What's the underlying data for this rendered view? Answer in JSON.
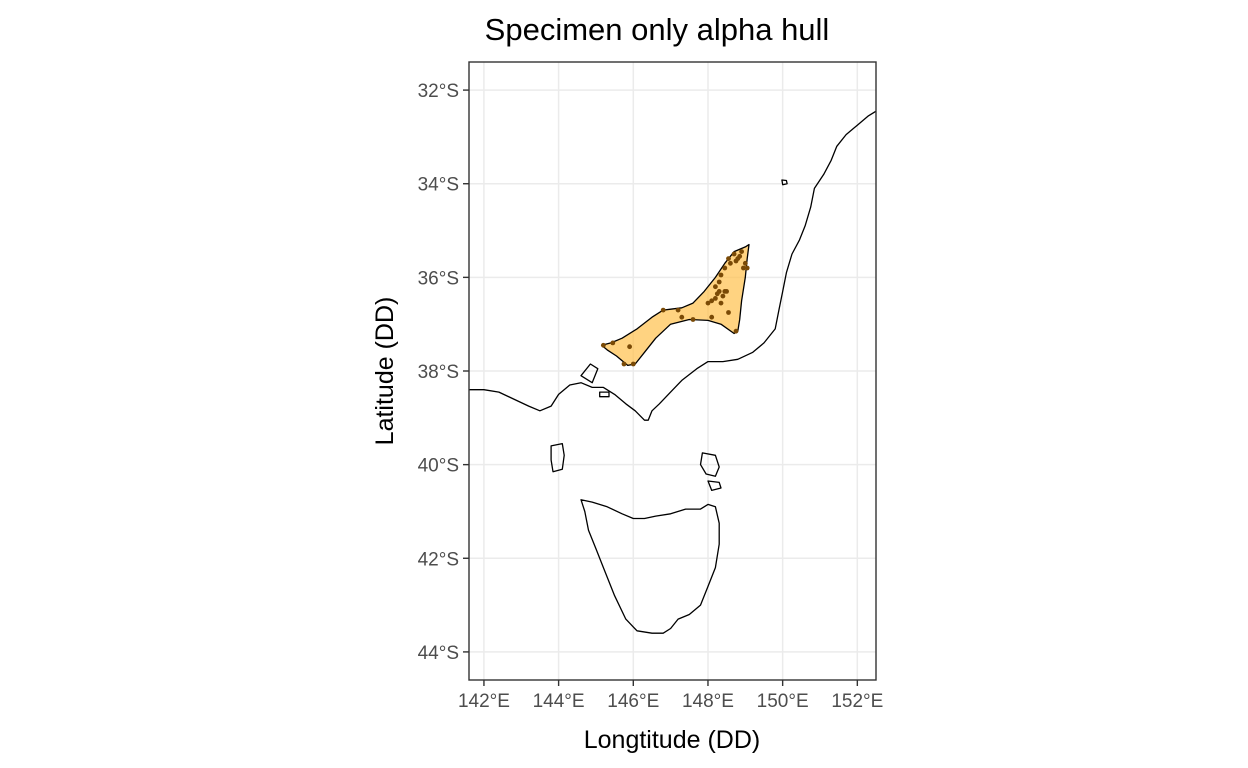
{
  "title": "Specimen only alpha hull",
  "x_axis": {
    "label": "Longtitude (DD)",
    "ticks": [
      142,
      144,
      146,
      148,
      150,
      152
    ],
    "tick_labels": [
      "142°E",
      "144°E",
      "146°E",
      "148°E",
      "150°E",
      "152°E"
    ],
    "range": [
      141.6,
      152.5
    ]
  },
  "y_axis": {
    "label": "Latitude (DD)",
    "ticks": [
      -32,
      -34,
      -36,
      -38,
      -40,
      -42,
      -44
    ],
    "tick_labels": [
      "32°S",
      "34°S",
      "36°S",
      "38°S",
      "40°S",
      "42°S",
      "44°S"
    ],
    "range": [
      -44.6,
      -31.4
    ]
  },
  "grid": true,
  "colors": {
    "hull_fill": "#ffc04c",
    "hull_opacity": 0.7,
    "point": "#7a4a06",
    "coastline": "#000000",
    "grid": "#ebebeb"
  },
  "map_layers": {
    "coastline_mainland": [
      [
        141.6,
        -38.4
      ],
      [
        142.0,
        -38.4
      ],
      [
        142.4,
        -38.45
      ],
      [
        142.8,
        -38.6
      ],
      [
        143.2,
        -38.75
      ],
      [
        143.5,
        -38.85
      ],
      [
        143.8,
        -38.75
      ],
      [
        144.0,
        -38.5
      ],
      [
        144.3,
        -38.3
      ],
      [
        144.6,
        -38.25
      ],
      [
        144.9,
        -38.35
      ],
      [
        145.2,
        -38.35
      ],
      [
        145.5,
        -38.5
      ],
      [
        145.8,
        -38.7
      ],
      [
        146.05,
        -38.85
      ],
      [
        146.3,
        -39.05
      ],
      [
        146.4,
        -39.05
      ],
      [
        146.5,
        -38.85
      ],
      [
        146.7,
        -38.7
      ],
      [
        147.0,
        -38.45
      ],
      [
        147.3,
        -38.2
      ],
      [
        147.7,
        -37.95
      ],
      [
        148.0,
        -37.8
      ],
      [
        148.4,
        -37.8
      ],
      [
        148.8,
        -37.75
      ],
      [
        149.2,
        -37.6
      ],
      [
        149.5,
        -37.4
      ],
      [
        149.8,
        -37.1
      ],
      [
        149.9,
        -36.7
      ],
      [
        150.0,
        -36.3
      ],
      [
        150.1,
        -35.9
      ],
      [
        150.25,
        -35.5
      ],
      [
        150.45,
        -35.2
      ],
      [
        150.6,
        -34.9
      ],
      [
        150.75,
        -34.5
      ],
      [
        150.85,
        -34.1
      ],
      [
        151.1,
        -33.8
      ],
      [
        151.3,
        -33.5
      ],
      [
        151.45,
        -33.2
      ],
      [
        151.7,
        -32.95
      ],
      [
        152.0,
        -32.75
      ],
      [
        152.3,
        -32.55
      ],
      [
        152.5,
        -32.45
      ]
    ],
    "coastline_tasmania": [
      [
        144.6,
        -40.75
      ],
      [
        144.9,
        -40.8
      ],
      [
        145.3,
        -40.9
      ],
      [
        145.7,
        -41.05
      ],
      [
        146.0,
        -41.15
      ],
      [
        146.3,
        -41.15
      ],
      [
        146.6,
        -41.1
      ],
      [
        147.0,
        -41.05
      ],
      [
        147.4,
        -40.95
      ],
      [
        147.8,
        -40.95
      ],
      [
        148.0,
        -40.85
      ],
      [
        148.2,
        -40.9
      ],
      [
        148.3,
        -41.25
      ],
      [
        148.3,
        -41.7
      ],
      [
        148.2,
        -42.2
      ],
      [
        148.0,
        -42.6
      ],
      [
        147.8,
        -43.0
      ],
      [
        147.5,
        -43.2
      ],
      [
        147.2,
        -43.3
      ],
      [
        147.0,
        -43.5
      ],
      [
        146.8,
        -43.6
      ],
      [
        146.5,
        -43.6
      ],
      [
        146.1,
        -43.55
      ],
      [
        145.8,
        -43.3
      ],
      [
        145.5,
        -42.8
      ],
      [
        145.2,
        -42.2
      ],
      [
        145.0,
        -41.8
      ],
      [
        144.8,
        -41.4
      ],
      [
        144.7,
        -41.0
      ],
      [
        144.6,
        -40.75
      ]
    ],
    "king_island": [
      [
        143.8,
        -39.6
      ],
      [
        144.1,
        -39.55
      ],
      [
        144.15,
        -39.8
      ],
      [
        144.1,
        -40.1
      ],
      [
        143.85,
        -40.15
      ],
      [
        143.8,
        -39.9
      ],
      [
        143.8,
        -39.6
      ]
    ],
    "flinders_island": [
      [
        147.85,
        -39.75
      ],
      [
        148.2,
        -39.8
      ],
      [
        148.3,
        -40.05
      ],
      [
        148.2,
        -40.25
      ],
      [
        147.95,
        -40.2
      ],
      [
        147.8,
        -40.0
      ],
      [
        147.85,
        -39.75
      ]
    ],
    "cape_barren_island": [
      [
        148.0,
        -40.35
      ],
      [
        148.3,
        -40.38
      ],
      [
        148.35,
        -40.5
      ],
      [
        148.1,
        -40.55
      ],
      [
        148.0,
        -40.35
      ]
    ],
    "montague_island": [
      [
        149.98,
        -33.92
      ],
      [
        150.1,
        -33.93
      ],
      [
        150.12,
        -34.0
      ],
      [
        150.0,
        -34.02
      ],
      [
        149.98,
        -33.92
      ]
    ],
    "phillip_island": [
      [
        145.1,
        -38.45
      ],
      [
        145.35,
        -38.45
      ],
      [
        145.35,
        -38.55
      ],
      [
        145.1,
        -38.55
      ],
      [
        145.1,
        -38.45
      ]
    ],
    "port_phillip_bay": [
      [
        144.6,
        -38.1
      ],
      [
        144.85,
        -37.85
      ],
      [
        145.05,
        -37.95
      ],
      [
        144.9,
        -38.25
      ],
      [
        144.6,
        -38.1
      ]
    ]
  },
  "chart_data": {
    "type": "scatter",
    "title": "Specimen only alpha hull",
    "xlabel": "Longtitude (DD)",
    "ylabel": "Latitude (DD)",
    "xlim": [
      141.6,
      152.5
    ],
    "ylim": [
      -44.6,
      -31.4
    ],
    "grid": true,
    "hull": [
      [
        145.15,
        -37.45
      ],
      [
        145.4,
        -37.4
      ],
      [
        145.7,
        -37.3
      ],
      [
        146.1,
        -37.1
      ],
      [
        146.5,
        -36.85
      ],
      [
        146.8,
        -36.7
      ],
      [
        147.0,
        -36.68
      ],
      [
        147.3,
        -36.65
      ],
      [
        147.6,
        -36.55
      ],
      [
        147.9,
        -36.3
      ],
      [
        148.2,
        -36.0
      ],
      [
        148.45,
        -35.7
      ],
      [
        148.7,
        -35.45
      ],
      [
        149.0,
        -35.35
      ],
      [
        149.1,
        -35.3
      ],
      [
        149.05,
        -35.6
      ],
      [
        149.0,
        -36.0
      ],
      [
        148.9,
        -36.5
      ],
      [
        148.85,
        -36.9
      ],
      [
        148.8,
        -37.15
      ],
      [
        148.7,
        -37.2
      ],
      [
        148.35,
        -37.0
      ],
      [
        148.0,
        -36.92
      ],
      [
        147.5,
        -36.9
      ],
      [
        147.0,
        -37.0
      ],
      [
        146.6,
        -37.3
      ],
      [
        146.3,
        -37.6
      ],
      [
        146.05,
        -37.85
      ],
      [
        145.85,
        -37.88
      ],
      [
        145.55,
        -37.68
      ],
      [
        145.3,
        -37.55
      ],
      [
        145.15,
        -37.45
      ]
    ],
    "points": [
      [
        145.2,
        -37.45
      ],
      [
        145.45,
        -37.4
      ],
      [
        145.9,
        -37.48
      ],
      [
        145.75,
        -37.85
      ],
      [
        146.0,
        -37.85
      ],
      [
        146.8,
        -36.7
      ],
      [
        147.2,
        -36.7
      ],
      [
        147.3,
        -36.85
      ],
      [
        147.6,
        -36.9
      ],
      [
        148.0,
        -36.55
      ],
      [
        148.1,
        -36.5
      ],
      [
        148.2,
        -36.45
      ],
      [
        148.25,
        -36.35
      ],
      [
        148.3,
        -36.3
      ],
      [
        148.35,
        -36.55
      ],
      [
        148.4,
        -36.4
      ],
      [
        148.45,
        -36.3
      ],
      [
        148.5,
        -36.3
      ],
      [
        148.55,
        -36.75
      ],
      [
        148.3,
        -36.1
      ],
      [
        148.35,
        -35.95
      ],
      [
        148.45,
        -35.8
      ],
      [
        148.55,
        -35.6
      ],
      [
        148.6,
        -35.7
      ],
      [
        148.7,
        -35.5
      ],
      [
        148.75,
        -35.65
      ],
      [
        148.8,
        -35.6
      ],
      [
        148.85,
        -35.55
      ],
      [
        148.9,
        -35.45
      ],
      [
        148.95,
        -35.8
      ],
      [
        149.0,
        -35.7
      ],
      [
        149.05,
        -35.8
      ],
      [
        148.75,
        -37.15
      ],
      [
        148.1,
        -36.85
      ],
      [
        148.2,
        -36.2
      ]
    ]
  }
}
